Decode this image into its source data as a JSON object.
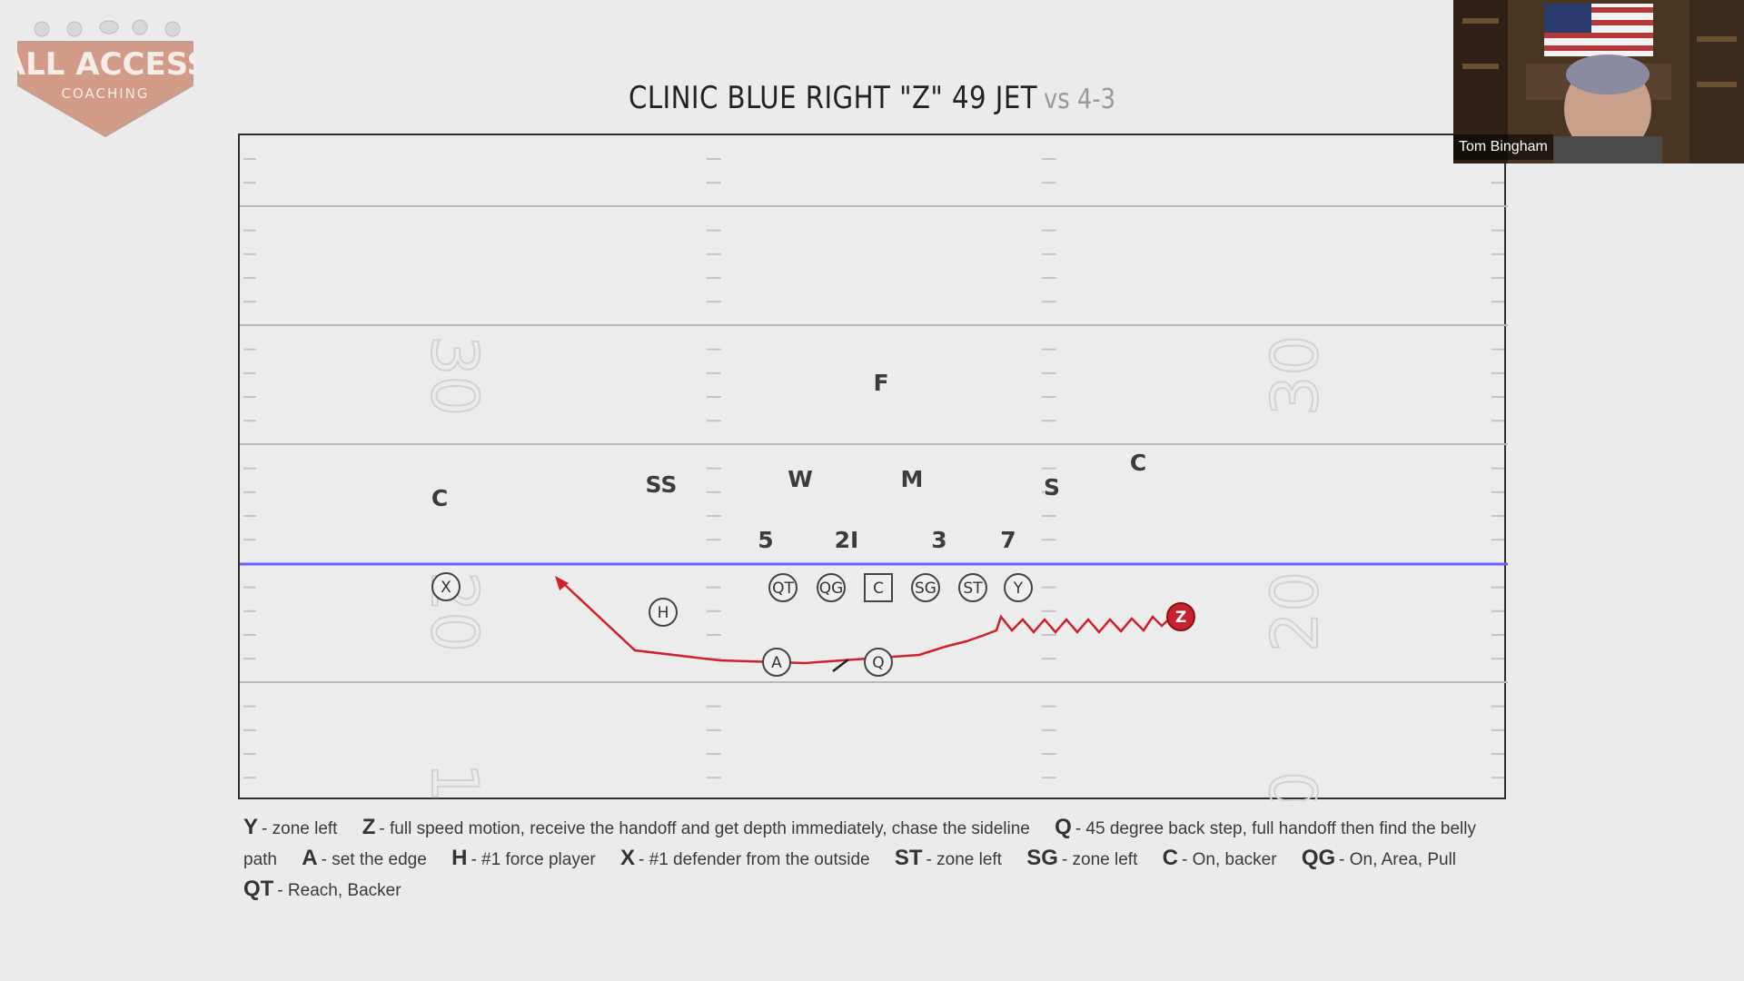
{
  "logo": {
    "line1": "ALL ACCESS",
    "line2": "COACHING"
  },
  "title": {
    "main": "CLINIC BLUE RIGHT \"Z\" 49 JET",
    "sub": "vs 4-3"
  },
  "yard_numbers": {
    "left_top": "30",
    "left_mid": "20",
    "left_bottom": "1",
    "right_top": "30",
    "right_mid": "20",
    "right_bottom": "0"
  },
  "defense": [
    {
      "id": "def-F",
      "label": "F"
    },
    {
      "id": "def-C-left",
      "label": "C"
    },
    {
      "id": "def-SS",
      "label": "SS"
    },
    {
      "id": "def-W",
      "label": "W"
    },
    {
      "id": "def-M",
      "label": "M"
    },
    {
      "id": "def-S",
      "label": "S"
    },
    {
      "id": "def-C-right",
      "label": "C"
    },
    {
      "id": "tech-5",
      "label": "5"
    },
    {
      "id": "tech-2i",
      "label": "2I"
    },
    {
      "id": "tech-3",
      "label": "3"
    },
    {
      "id": "tech-7",
      "label": "7"
    }
  ],
  "offense": [
    {
      "id": "off-X",
      "label": "X",
      "shape": "circle"
    },
    {
      "id": "off-H",
      "label": "H",
      "shape": "circle"
    },
    {
      "id": "off-QT",
      "label": "QT",
      "shape": "circle"
    },
    {
      "id": "off-QG",
      "label": "QG",
      "shape": "circle"
    },
    {
      "id": "off-C",
      "label": "C",
      "shape": "square"
    },
    {
      "id": "off-SG",
      "label": "SG",
      "shape": "circle"
    },
    {
      "id": "off-ST",
      "label": "ST",
      "shape": "circle"
    },
    {
      "id": "off-Y",
      "label": "Y",
      "shape": "circle"
    },
    {
      "id": "off-Z",
      "label": "Z",
      "shape": "filled"
    },
    {
      "id": "off-A",
      "label": "A",
      "shape": "circle"
    },
    {
      "id": "off-Q",
      "label": "Q",
      "shape": "circle"
    }
  ],
  "legend": [
    {
      "key": "Y",
      "text": "- zone left"
    },
    {
      "key": "Z",
      "text": "- full speed motion, receive the handoff and get depth immediately, chase the sideline"
    },
    {
      "key": "Q",
      "text": "- 45 degree back step, full handoff then find the belly path"
    },
    {
      "key": "A",
      "text": "- set the edge"
    },
    {
      "key": "H",
      "text": "- #1 force player"
    },
    {
      "key": "X",
      "text": "- #1 defender from the outside"
    },
    {
      "key": "ST",
      "text": "- zone left"
    },
    {
      "key": "SG",
      "text": "- zone left"
    },
    {
      "key": "C",
      "text": "- On, backer"
    },
    {
      "key": "QG",
      "text": "- On, Area, Pull"
    },
    {
      "key": "QT",
      "text": "- Reach, Backer"
    }
  ],
  "webcam": {
    "name": "Tom Bingham"
  },
  "colors": {
    "route": "#d0202f",
    "los": "#6b5cff",
    "z_fill": "#c8202f",
    "field_line": "#b5b5b5"
  }
}
